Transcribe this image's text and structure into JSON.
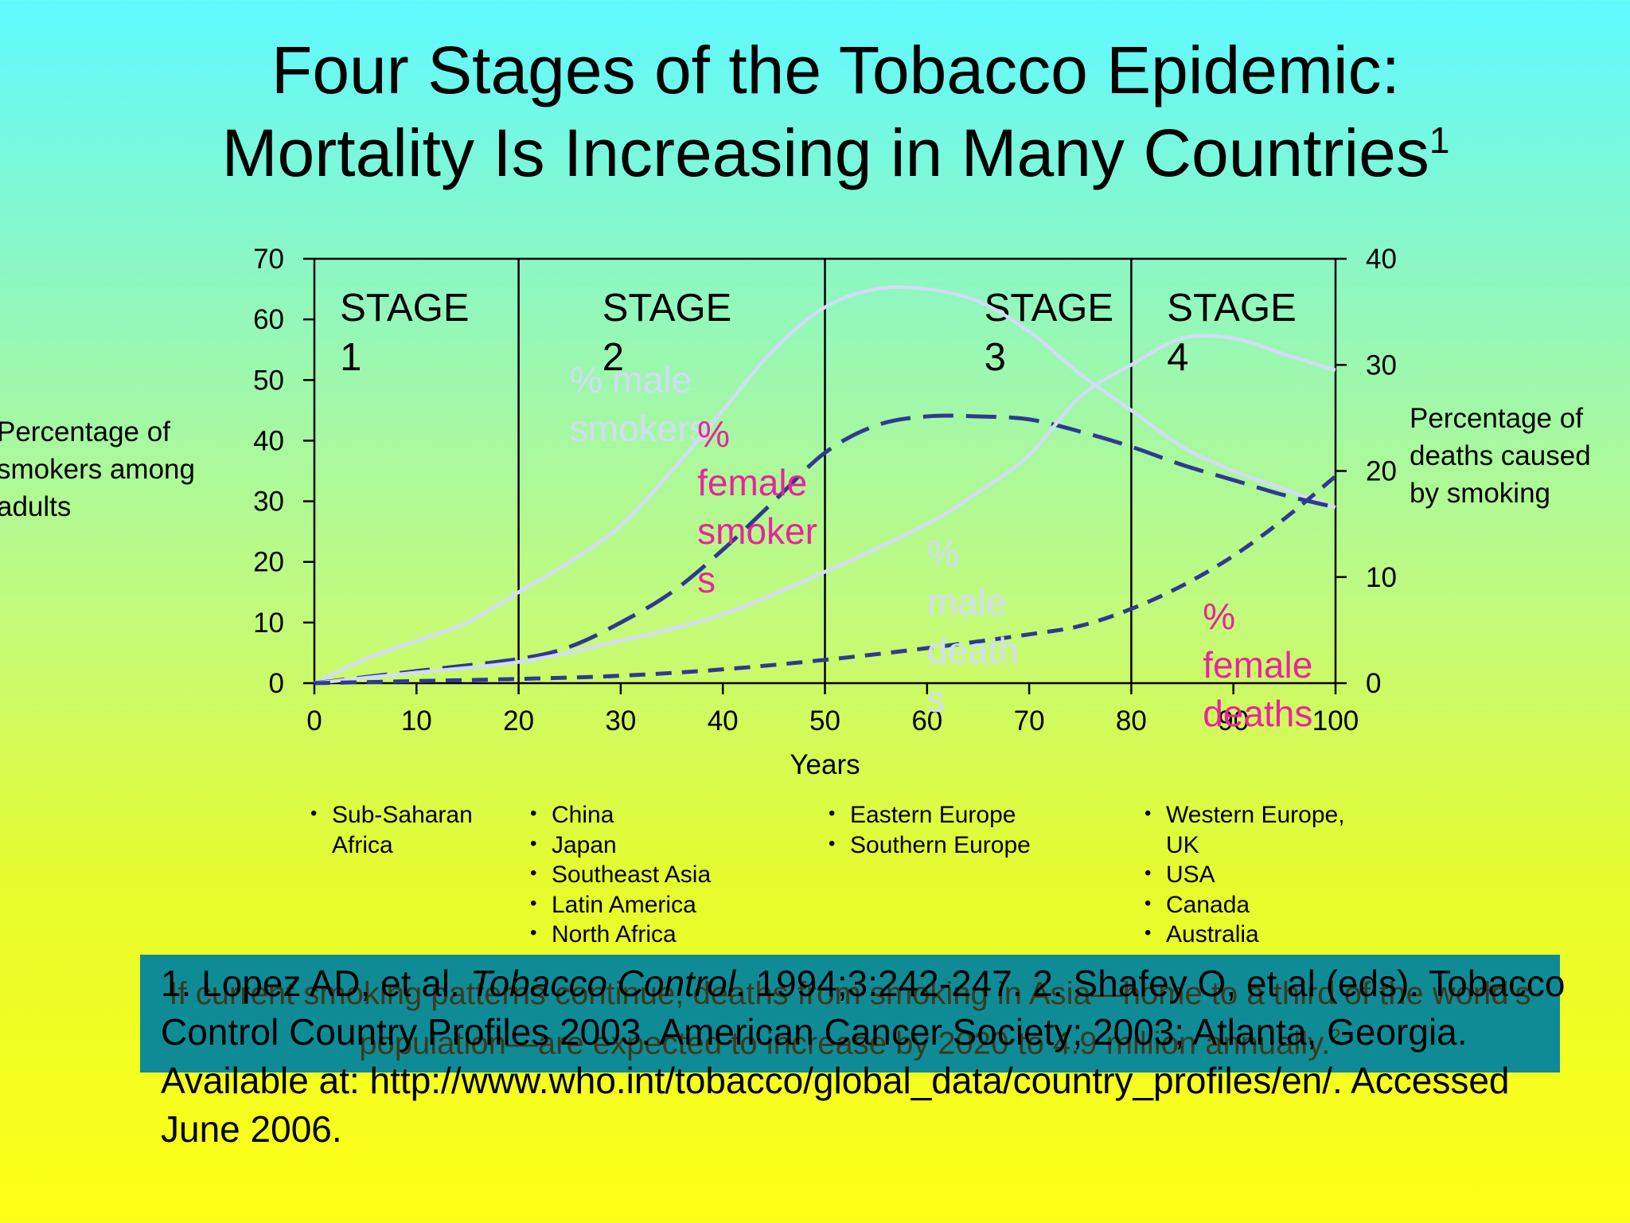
{
  "slide": {
    "title_line1": "Four Stages of the Tobacco Epidemic:",
    "title_line2": "Mortality Is Increasing in Many Countries",
    "title_superscript": "1"
  },
  "axes": {
    "left_title": "Percentage of smokers among adults",
    "right_title": "Percentage of deaths caused by smoking"
  },
  "regions": [
    {
      "items": [
        "Sub-Saharan Africa"
      ]
    },
    {
      "items": [
        "China",
        "Japan",
        "Southeast Asia",
        "Latin America",
        "North Africa"
      ]
    },
    {
      "items": [
        "Eastern Europe",
        "Southern Europe"
      ]
    },
    {
      "items": [
        "Western Europe, UK",
        "USA",
        "Canada",
        "Australia"
      ]
    }
  ],
  "banner": {
    "text": "If current smoking patterns continue, deaths from smoking in Asia—home to a third of the world’s population—are expected to increase by 2020 to 4.9 million annually.",
    "superscript": "2"
  },
  "footnote": {
    "part1": "1. Lopez AD, et al. ",
    "journal": "Tobacco Control",
    "part2": ". 1994;3:242-247. 2. Shafey O, et al (eds). Tobacco Control Country Profiles 2003. American Cancer Society; 2003; Atlanta, Georgia. Available at: http://www.who.int/tobacco/global_data/country_profiles/en/. Accessed June 2006."
  },
  "colors": {
    "male_smokers": "#d2dcf8",
    "female_smokers": "#2e3a90",
    "male_deaths": "#d2dcf8",
    "female_deaths": "#2e3a90",
    "female_label": "#e8259a"
  },
  "chart_data": {
    "type": "line",
    "xlabel": "Years",
    "ylabel": "Percentage of smokers among adults",
    "y2label": "Percentage of deaths caused by smoking",
    "xlim": [
      0,
      100
    ],
    "ylim": [
      0,
      70
    ],
    "y2lim": [
      0,
      40
    ],
    "xticks": [
      0,
      10,
      20,
      30,
      40,
      50,
      60,
      70,
      80,
      90,
      100
    ],
    "yticks": [
      0,
      10,
      20,
      30,
      40,
      50,
      60,
      70
    ],
    "y2ticks": [
      0,
      10,
      20,
      30,
      40
    ],
    "stages": [
      {
        "label": "STAGE",
        "number": "1",
        "start": 0,
        "end": 20
      },
      {
        "label": "STAGE",
        "number": "2",
        "start": 20,
        "end": 50
      },
      {
        "label": "STAGE",
        "number": "3",
        "start": 50,
        "end": 80
      },
      {
        "label": "STAGE",
        "number": "4",
        "start": 80,
        "end": 100
      }
    ],
    "series": [
      {
        "name": "% male smokers",
        "axis": "left",
        "style": "solid",
        "points": [
          [
            0,
            0
          ],
          [
            5,
            4
          ],
          [
            10,
            7
          ],
          [
            15,
            10
          ],
          [
            20,
            15
          ],
          [
            25,
            20
          ],
          [
            30,
            26
          ],
          [
            35,
            35
          ],
          [
            40,
            45
          ],
          [
            45,
            55
          ],
          [
            50,
            62
          ],
          [
            55,
            65
          ],
          [
            60,
            65
          ],
          [
            65,
            63
          ],
          [
            70,
            58
          ],
          [
            75,
            51
          ],
          [
            80,
            45
          ],
          [
            85,
            39
          ],
          [
            90,
            35
          ],
          [
            95,
            32
          ],
          [
            100,
            29
          ]
        ]
      },
      {
        "name": "% female smokers",
        "axis": "left",
        "style": "long-dash",
        "points": [
          [
            0,
            0
          ],
          [
            10,
            2
          ],
          [
            20,
            4
          ],
          [
            25,
            6
          ],
          [
            30,
            10
          ],
          [
            35,
            15
          ],
          [
            40,
            22
          ],
          [
            45,
            30
          ],
          [
            50,
            38
          ],
          [
            55,
            42.5
          ],
          [
            60,
            44
          ],
          [
            65,
            44
          ],
          [
            70,
            43.5
          ],
          [
            75,
            41.5
          ],
          [
            80,
            39
          ],
          [
            85,
            36
          ],
          [
            90,
            33.5
          ],
          [
            95,
            31
          ],
          [
            100,
            29
          ]
        ]
      },
      {
        "name": "% male deaths",
        "axis": "right",
        "style": "solid",
        "points": [
          [
            0,
            0
          ],
          [
            10,
            1
          ],
          [
            20,
            2
          ],
          [
            30,
            4
          ],
          [
            40,
            6.5
          ],
          [
            50,
            10.5
          ],
          [
            60,
            15
          ],
          [
            65,
            18
          ],
          [
            70,
            21.5
          ],
          [
            75,
            27
          ],
          [
            80,
            30
          ],
          [
            85,
            32.5
          ],
          [
            90,
            32.5
          ],
          [
            95,
            31
          ],
          [
            100,
            29.5
          ]
        ]
      },
      {
        "name": "% female deaths",
        "axis": "right",
        "style": "short-dash",
        "points": [
          [
            0,
            0
          ],
          [
            10,
            0.2
          ],
          [
            20,
            0.4
          ],
          [
            30,
            0.7
          ],
          [
            40,
            1.3
          ],
          [
            50,
            2.2
          ],
          [
            60,
            3.3
          ],
          [
            70,
            4.6
          ],
          [
            75,
            5.4
          ],
          [
            80,
            7
          ],
          [
            85,
            9.2
          ],
          [
            90,
            12
          ],
          [
            95,
            15.5
          ],
          [
            100,
            19.5
          ]
        ]
      }
    ],
    "annotations": [
      {
        "text": "% male smokers",
        "x": 25,
        "y": 42,
        "axis": "left",
        "color": "male_smokers"
      },
      {
        "text": "% female smokers",
        "x": 37.5,
        "y": 36,
        "axis": "left",
        "color": "female_label"
      },
      {
        "text": "% male deaths",
        "x": 60,
        "y": 22,
        "axis": "left",
        "color": "male_deaths"
      },
      {
        "text": "% female deaths",
        "x": 87,
        "y": 8,
        "axis": "left",
        "color": "female_label"
      }
    ]
  }
}
